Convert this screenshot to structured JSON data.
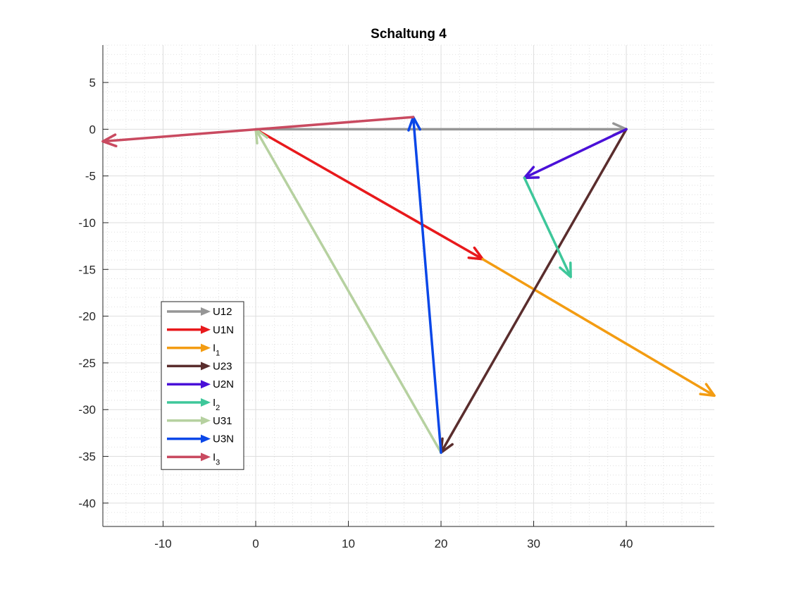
{
  "chart_data": {
    "type": "vector",
    "title": "Schaltung 4",
    "xlabel": "",
    "ylabel": "",
    "xlim": [
      -16.5,
      49.5
    ],
    "ylim": [
      -42.5,
      9.0
    ],
    "xticks": [
      -10,
      0,
      10,
      20,
      30,
      40
    ],
    "yticks": [
      5,
      0,
      -5,
      -10,
      -15,
      -20,
      -25,
      -30,
      -35,
      -40
    ],
    "grid": true,
    "minor_grid": true,
    "legend_position": "lower-left",
    "series": [
      {
        "name": "U12",
        "label_main": "U12",
        "label_sub": "",
        "color": "#969696",
        "start": [
          0,
          0
        ],
        "end": [
          40,
          0
        ]
      },
      {
        "name": "U1N",
        "label_main": "U1N",
        "label_sub": "",
        "color": "#e8191c",
        "start": [
          0,
          0
        ],
        "end": [
          24.5,
          -13.9
        ]
      },
      {
        "name": "I1",
        "label_main": "I",
        "label_sub": "1",
        "color": "#f39c12",
        "start": [
          24.5,
          -13.9
        ],
        "end": [
          49.5,
          -28.5
        ]
      },
      {
        "name": "U23",
        "label_main": "U23",
        "label_sub": "",
        "color": "#5a2d2d",
        "start": [
          40,
          0
        ],
        "end": [
          20,
          -34.6
        ]
      },
      {
        "name": "U2N",
        "label_main": "U2N",
        "label_sub": "",
        "color": "#4a10d8",
        "start": [
          40,
          0
        ],
        "end": [
          29,
          -5.2
        ]
      },
      {
        "name": "I2",
        "label_main": "I",
        "label_sub": "2",
        "color": "#3ec79a",
        "start": [
          29,
          -5.2
        ],
        "end": [
          34,
          -15.8
        ]
      },
      {
        "name": "U31",
        "label_main": "U31",
        "label_sub": "",
        "color": "#b6d1a0",
        "start": [
          20,
          -34.6
        ],
        "end": [
          0,
          0
        ]
      },
      {
        "name": "U3N",
        "label_main": "U3N",
        "label_sub": "",
        "color": "#0a47e8",
        "start": [
          20,
          -34.6
        ],
        "end": [
          17,
          1.3
        ]
      },
      {
        "name": "I3",
        "label_main": "I",
        "label_sub": "3",
        "color": "#c94a60",
        "start": [
          17,
          1.3
        ],
        "end": [
          -16.5,
          -1.3
        ]
      }
    ]
  }
}
